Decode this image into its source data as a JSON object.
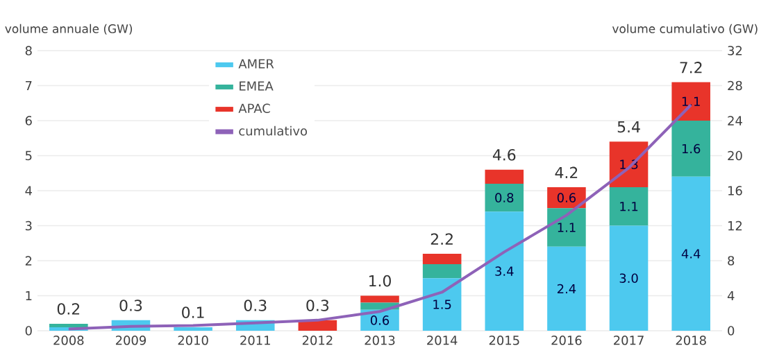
{
  "chart_data": {
    "type": "bar",
    "stacked": true,
    "ylabel": "volume annuale (GW)",
    "y2label": "volume cumulativo (GW)",
    "categories": [
      "2008",
      "2009",
      "2010",
      "2011",
      "2012",
      "2013",
      "2014",
      "2015",
      "2016",
      "2017",
      "2018"
    ],
    "series": [
      {
        "name": "AMER",
        "color": "#4dc9ef",
        "values": [
          0.1,
          0.3,
          0.1,
          0.3,
          0.0,
          0.6,
          1.5,
          3.4,
          2.4,
          3.0,
          4.4
        ],
        "value_labels": [
          null,
          null,
          null,
          null,
          null,
          "0.6",
          "1.5",
          "3.4",
          "2.4",
          "3.0",
          "4.4"
        ]
      },
      {
        "name": "EMEA",
        "color": "#35b39c",
        "values": [
          0.1,
          0.0,
          0.0,
          0.0,
          0.0,
          0.2,
          0.4,
          0.8,
          1.1,
          1.1,
          1.6
        ],
        "value_labels": [
          null,
          null,
          null,
          null,
          null,
          null,
          null,
          "0.8",
          "1.1",
          "1.1",
          "1.6"
        ]
      },
      {
        "name": "APAC",
        "color": "#e8342a",
        "values": [
          0.0,
          0.0,
          0.0,
          0.0,
          0.3,
          0.2,
          0.3,
          0.4,
          0.6,
          1.3,
          1.1
        ],
        "value_labels": [
          null,
          null,
          null,
          null,
          null,
          null,
          null,
          null,
          "0.6",
          "1.3",
          "1.1"
        ]
      },
      {
        "name": "cumulativo",
        "color": "#8e62b8",
        "type": "line",
        "axis": "y2",
        "values": [
          0.2,
          0.5,
          0.6,
          0.9,
          1.2,
          2.2,
          4.4,
          9.0,
          13.2,
          18.6,
          25.8
        ]
      }
    ],
    "totals": [
      "0.2",
      "0.3",
      "0.1",
      "0.3",
      "0.3",
      "1.0",
      "2.2",
      "4.6",
      "4.2",
      "5.4",
      "7.2"
    ],
    "ylim": [
      0,
      8
    ],
    "yticks": [
      0,
      1,
      2,
      3,
      4,
      5,
      6,
      7,
      8
    ],
    "y2lim": [
      0,
      32
    ],
    "y2ticks": [
      0,
      4,
      8,
      12,
      16,
      20,
      24,
      28,
      32
    ],
    "grid": "y",
    "legend": "top left",
    "marker": "none",
    "line_style": "solid"
  }
}
